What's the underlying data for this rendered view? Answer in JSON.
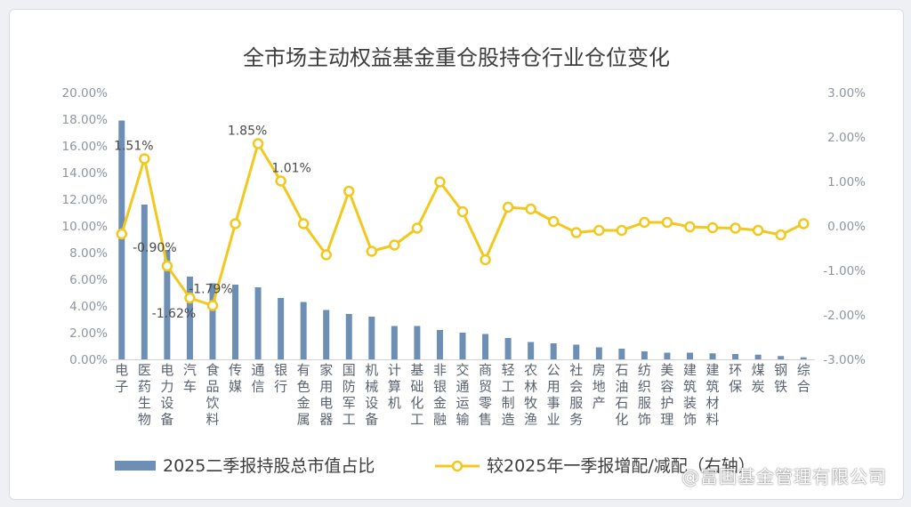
{
  "chart_data": {
    "type": "bar",
    "title": "全市场主动权益基金重仓股持仓行业仓位变化",
    "categories": [
      [
        "电",
        "子"
      ],
      [
        "医",
        "药",
        "生",
        "物"
      ],
      [
        "电",
        "力",
        "设",
        "备"
      ],
      [
        "汽",
        "车"
      ],
      [
        "食",
        "品",
        "饮",
        "料"
      ],
      [
        "传",
        "媒"
      ],
      [
        "通",
        "信"
      ],
      [
        "银",
        "行"
      ],
      [
        "有",
        "色",
        "金",
        "属"
      ],
      [
        "家",
        "用",
        "电",
        "器"
      ],
      [
        "国",
        "防",
        "军",
        "工"
      ],
      [
        "机",
        "械",
        "设",
        "备"
      ],
      [
        "计",
        "算",
        "机"
      ],
      [
        "基",
        "础",
        "化",
        "工"
      ],
      [
        "非",
        "银",
        "金",
        "融"
      ],
      [
        "交",
        "通",
        "运",
        "输"
      ],
      [
        "商",
        "贸",
        "零",
        "售"
      ],
      [
        "轻",
        "工",
        "制",
        "造"
      ],
      [
        "农",
        "林",
        "牧",
        "渔"
      ],
      [
        "公",
        "用",
        "事",
        "业"
      ],
      [
        "社",
        "会",
        "服",
        "务"
      ],
      [
        "房",
        "地",
        "产"
      ],
      [
        "石",
        "油",
        "石",
        "化"
      ],
      [
        "纺",
        "织",
        "服",
        "饰"
      ],
      [
        "美",
        "容",
        "护",
        "理"
      ],
      [
        "建",
        "筑",
        "装",
        "饰"
      ],
      [
        "建",
        "筑",
        "材",
        "料"
      ],
      [
        "环",
        "保"
      ],
      [
        "煤",
        "炭"
      ],
      [
        "钢",
        "铁"
      ],
      [
        "综",
        "合"
      ]
    ],
    "left_axis": {
      "min": 0,
      "max": 20,
      "step": 2,
      "tick_labels": [
        "0.00%",
        "2.00%",
        "4.00%",
        "6.00%",
        "8.00%",
        "10.00%",
        "12.00%",
        "14.00%",
        "16.00%",
        "18.00%",
        "20.00%"
      ]
    },
    "right_axis": {
      "min": -3,
      "max": 3,
      "step": 1,
      "tick_labels": [
        "-3.00%",
        "-2.00%",
        "-1.00%",
        "0.00%",
        "1.00%",
        "2.00%",
        "3.00%"
      ]
    },
    "series": [
      {
        "name": "2025二季报持股总市值占比",
        "type": "bar",
        "axis": "left",
        "color": "#6e8fb5",
        "values": [
          17.9,
          11.6,
          8.2,
          6.2,
          5.7,
          5.6,
          5.4,
          4.6,
          4.3,
          3.7,
          3.4,
          3.2,
          2.5,
          2.5,
          2.2,
          2.0,
          1.9,
          1.6,
          1.3,
          1.2,
          1.1,
          0.9,
          0.8,
          0.6,
          0.5,
          0.5,
          0.45,
          0.4,
          0.35,
          0.25,
          0.15
        ]
      },
      {
        "name": "较2025年一季报增配/减配（右轴）",
        "type": "line",
        "axis": "right",
        "color": "#f2c81e",
        "values": [
          -0.18,
          1.51,
          -0.9,
          -1.62,
          -1.79,
          0.05,
          1.85,
          1.01,
          0.05,
          -0.65,
          0.78,
          -0.57,
          -0.43,
          -0.05,
          0.99,
          0.32,
          -0.76,
          0.42,
          0.38,
          0.1,
          -0.15,
          -0.1,
          -0.1,
          0.08,
          0.08,
          -0.02,
          -0.04,
          -0.05,
          -0.1,
          -0.2,
          0.05
        ]
      }
    ],
    "data_labels": [
      {
        "series": 1,
        "index": 1,
        "text": "1.51%"
      },
      {
        "series": 1,
        "index": 2,
        "text": "-0.90%"
      },
      {
        "series": 1,
        "index": 3,
        "text": "-1.62%"
      },
      {
        "series": 1,
        "index": 4,
        "text": "-1.79%"
      },
      {
        "series": 1,
        "index": 6,
        "text": "1.85%"
      },
      {
        "series": 1,
        "index": 7,
        "text": "1.01%"
      }
    ],
    "legend_position": "bottom",
    "grid": false
  },
  "watermark": "@富国基金管理有限公司"
}
